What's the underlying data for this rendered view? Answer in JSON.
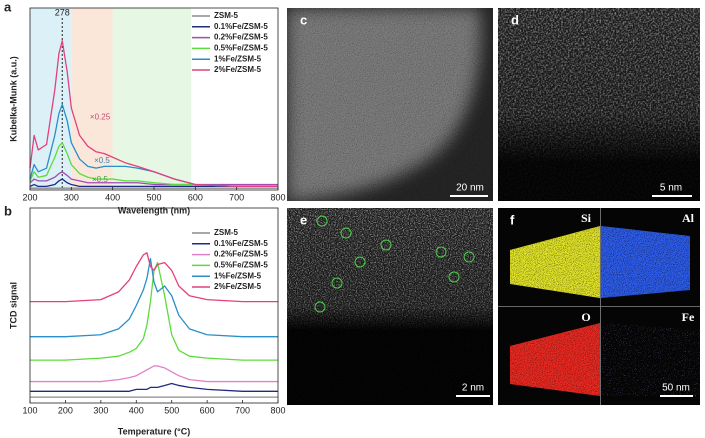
{
  "chart_data": [
    {
      "type": "line",
      "label": "a",
      "x_label": "Wavelength (nm)",
      "y_label": "Kubelka-Munk (a.u.)",
      "xlim": [
        200,
        800
      ],
      "xticks": [
        200,
        300,
        400,
        500,
        600,
        700,
        800
      ],
      "ylim": [
        0,
        1
      ],
      "reference_x": 278,
      "shaded_regions": [
        {
          "x": [
            200,
            300
          ],
          "color": "#dcf0f8"
        },
        {
          "x": [
            300,
            400
          ],
          "color": "#fbe6da"
        },
        {
          "x": [
            400,
            590
          ],
          "color": "#e6f7e4"
        }
      ],
      "x": [
        200,
        210,
        220,
        240,
        260,
        270,
        278,
        290,
        300,
        320,
        340,
        360,
        380,
        400,
        430,
        460,
        500,
        550,
        600,
        700,
        800
      ],
      "series": [
        {
          "name": "ZSM-5",
          "color": "#8c8c8c",
          "values": [
            0.01,
            0.01,
            0.01,
            0.01,
            0.01,
            0.01,
            0.01,
            0.01,
            0.01,
            0.01,
            0.01,
            0.01,
            0.01,
            0.01,
            0.01,
            0.01,
            0.01,
            0.01,
            0.01,
            0.01,
            0.01
          ]
        },
        {
          "name": "0.1%Fe/ZSM-5",
          "color": "#1f2a80",
          "values": [
            0.02,
            0.03,
            0.02,
            0.02,
            0.03,
            0.05,
            0.06,
            0.04,
            0.03,
            0.02,
            0.02,
            0.02,
            0.02,
            0.02,
            0.02,
            0.02,
            0.02,
            0.02,
            0.02,
            0.02,
            0.02
          ]
        },
        {
          "name": "0.2%Fe/ZSM-5",
          "color": "#a04cb4",
          "values": [
            0.04,
            0.06,
            0.05,
            0.05,
            0.07,
            0.09,
            0.1,
            0.08,
            0.06,
            0.05,
            0.04,
            0.04,
            0.04,
            0.04,
            0.04,
            0.04,
            0.03,
            0.03,
            0.03,
            0.03,
            0.03
          ]
        },
        {
          "name": "0.5%Fe/ZSM-5",
          "color": "#5cdc3c",
          "values": [
            0.05,
            0.1,
            0.07,
            0.08,
            0.18,
            0.24,
            0.26,
            0.2,
            0.14,
            0.09,
            0.07,
            0.06,
            0.06,
            0.06,
            0.05,
            0.05,
            0.04,
            0.03,
            0.03,
            0.02,
            0.02
          ]
        },
        {
          "name": "1%Fe/ZSM-5",
          "color": "#2a8fc8",
          "values": [
            0.06,
            0.14,
            0.1,
            0.12,
            0.3,
            0.42,
            0.47,
            0.38,
            0.26,
            0.17,
            0.13,
            0.12,
            0.13,
            0.13,
            0.13,
            0.12,
            0.1,
            0.06,
            0.03,
            0.02,
            0.02
          ]
        },
        {
          "name": "2%Fe/ZSM-5",
          "color": "#e4407c",
          "values": [
            0.12,
            0.3,
            0.22,
            0.25,
            0.55,
            0.75,
            0.82,
            0.65,
            0.45,
            0.3,
            0.24,
            0.21,
            0.2,
            0.18,
            0.15,
            0.13,
            0.1,
            0.06,
            0.03,
            0.02,
            0.02
          ]
        }
      ],
      "annotations": [
        {
          "text": "×0.25",
          "x": 345,
          "y": 0.4,
          "color": "#c05070"
        },
        {
          "text": "×0.5",
          "x": 355,
          "y": 0.16,
          "color": "#3a80b0"
        },
        {
          "text": "×0.5",
          "x": 350,
          "y": 0.055,
          "color": "#40a040"
        }
      ]
    },
    {
      "type": "line",
      "label": "b",
      "x_label": "Temperature (°C)",
      "y_label": "TCD signal",
      "xlim": [
        100,
        800
      ],
      "xticks": [
        100,
        200,
        300,
        400,
        500,
        600,
        700,
        800
      ],
      "ylim": [
        0,
        1
      ],
      "x": [
        100,
        200,
        300,
        350,
        380,
        400,
        420,
        430,
        440,
        450,
        460,
        480,
        500,
        520,
        550,
        600,
        700,
        800
      ],
      "series": [
        {
          "name": "ZSM-5",
          "color": "#8c8c8c",
          "values": [
            0.03,
            0.03,
            0.03,
            0.03,
            0.03,
            0.03,
            0.03,
            0.03,
            0.03,
            0.03,
            0.03,
            0.03,
            0.03,
            0.03,
            0.03,
            0.03,
            0.03,
            0.03
          ]
        },
        {
          "name": "0.1%Fe/ZSM-5",
          "color": "#1f2a80",
          "values": [
            0.06,
            0.06,
            0.06,
            0.06,
            0.06,
            0.07,
            0.07,
            0.07,
            0.08,
            0.08,
            0.08,
            0.09,
            0.1,
            0.09,
            0.08,
            0.07,
            0.06,
            0.06
          ]
        },
        {
          "name": "0.2%Fe/ZSM-5",
          "color": "#e080c8",
          "values": [
            0.11,
            0.11,
            0.11,
            0.12,
            0.13,
            0.14,
            0.16,
            0.17,
            0.18,
            0.19,
            0.19,
            0.18,
            0.16,
            0.14,
            0.12,
            0.11,
            0.11,
            0.11
          ]
        },
        {
          "name": "0.5%Fe/ZSM-5",
          "color": "#5cdc3c",
          "values": [
            0.22,
            0.22,
            0.23,
            0.24,
            0.26,
            0.28,
            0.33,
            0.4,
            0.52,
            0.68,
            0.72,
            0.55,
            0.35,
            0.27,
            0.24,
            0.23,
            0.22,
            0.22
          ]
        },
        {
          "name": "1%Fe/ZSM-5",
          "color": "#2a8fc8",
          "values": [
            0.34,
            0.34,
            0.35,
            0.38,
            0.43,
            0.5,
            0.58,
            0.64,
            0.74,
            0.62,
            0.57,
            0.6,
            0.55,
            0.45,
            0.38,
            0.35,
            0.34,
            0.34
          ]
        },
        {
          "name": "2%Fe/ZSM-5",
          "color": "#e4407c",
          "values": [
            0.52,
            0.52,
            0.53,
            0.57,
            0.63,
            0.7,
            0.76,
            0.77,
            0.7,
            0.68,
            0.71,
            0.72,
            0.68,
            0.6,
            0.55,
            0.53,
            0.52,
            0.52
          ]
        }
      ]
    }
  ],
  "panels": {
    "c": {
      "label": "c",
      "scale_bar": "20 nm"
    },
    "d": {
      "label": "d",
      "scale_bar": "5 nm"
    },
    "e": {
      "label": "e",
      "scale_bar": "2 nm"
    },
    "f": {
      "label": "f",
      "scale_bar": "50 nm",
      "elements": [
        "Si",
        "Al",
        "O",
        "Fe"
      ]
    }
  }
}
